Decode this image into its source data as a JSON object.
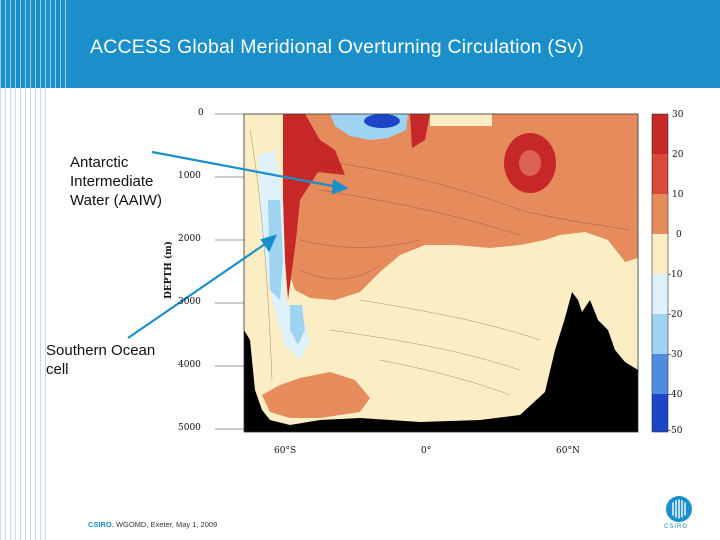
{
  "slide": {
    "title": "ACCESS Global  Meridional Overturning Circulation (Sv)",
    "annotations": [
      {
        "text_lines": [
          "Antarctic",
          "Intermediate",
          "Water (AAIW)"
        ]
      },
      {
        "text_lines": [
          "Southern Ocean",
          "cell"
        ]
      }
    ],
    "footer": {
      "brand": "CSIRO.",
      "text": "WGOMD, Exeter, May 1, 2009"
    },
    "logo_text": "CSIRO"
  },
  "plot": {
    "y_axis_title": "DEPTH (m)",
    "y_ticks": [
      "0",
      "1000",
      "2000",
      "3000",
      "4000",
      "5000"
    ],
    "x_ticks": [
      "60°S",
      "0°",
      "60°N"
    ],
    "colorbar_ticks": [
      "30",
      "20",
      "10",
      "0",
      "-10",
      "-20",
      "-30",
      "-40",
      "-50"
    ],
    "colors": {
      "strong_positive": "#c62828",
      "positive": "#e58b5c",
      "weak_positive": "#fbeec5",
      "weak_negative": "#dff1fb",
      "negative": "#9ed4f2",
      "strong_negative": "#1d45c8",
      "topography": "#000000",
      "accent": "#1a8fc9"
    }
  }
}
